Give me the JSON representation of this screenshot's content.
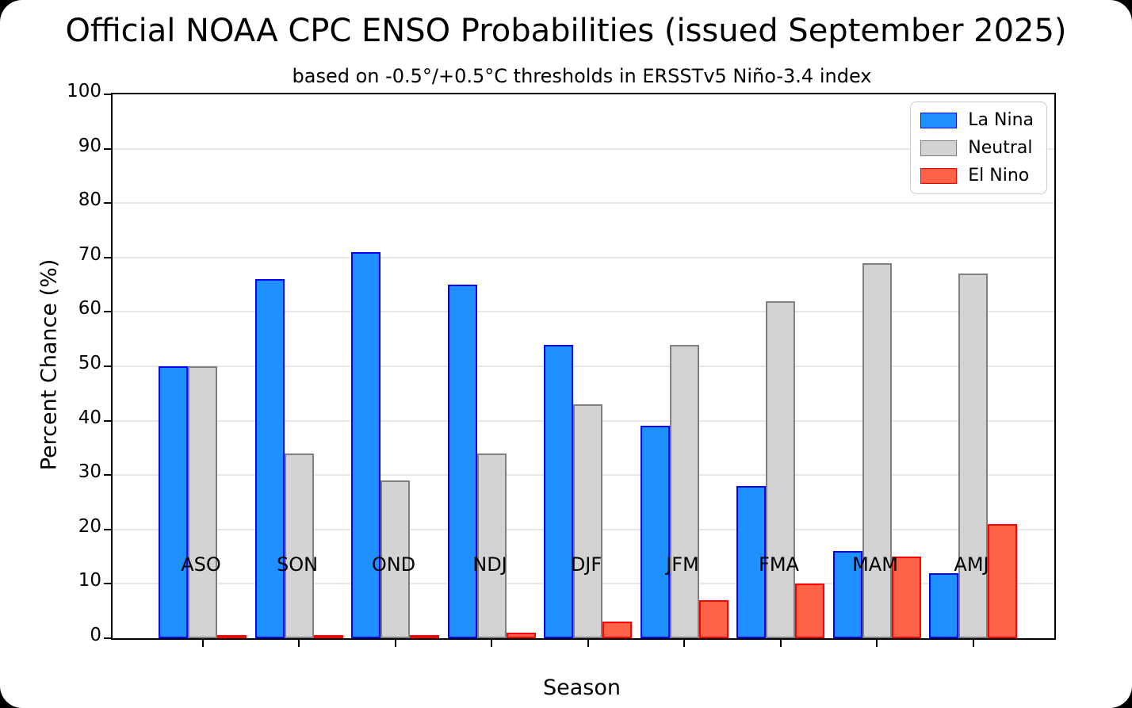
{
  "window": {
    "background_color": "#000000",
    "surface_color": "#ffffff"
  },
  "chart_data": {
    "type": "bar",
    "title": "Official NOAA CPC ENSO Probabilities (issued September 2025)",
    "subtitle": "based on -0.5°/+0.5°C thresholds in ERSSTv5 Niño-3.4 index",
    "xlabel": "Season",
    "ylabel": "Percent Chance (%)",
    "ylim": [
      0,
      100
    ],
    "ytick_step": 10,
    "grid": "horizontal",
    "grid_color": "#e8e8e8",
    "axis_color": "#000000",
    "legend_position": "upper right",
    "categories": [
      "ASO",
      "SON",
      "OND",
      "NDJ",
      "DJF",
      "JFM",
      "FMA",
      "MAM",
      "AMJ"
    ],
    "series": [
      {
        "name": "La Nina",
        "fill": "#1E90FF",
        "edge": "#0000FF",
        "values": [
          50,
          66,
          71,
          65,
          54,
          39,
          28,
          16,
          12
        ]
      },
      {
        "name": "Neutral",
        "fill": "#D3D3D3",
        "edge": "#808080",
        "values": [
          50,
          34,
          29,
          34,
          43,
          54,
          62,
          69,
          67
        ]
      },
      {
        "name": "El Nino",
        "fill": "#FF6347",
        "edge": "#FF0000",
        "values": [
          0,
          0,
          0,
          1,
          3,
          7,
          10,
          15,
          21
        ]
      }
    ]
  }
}
